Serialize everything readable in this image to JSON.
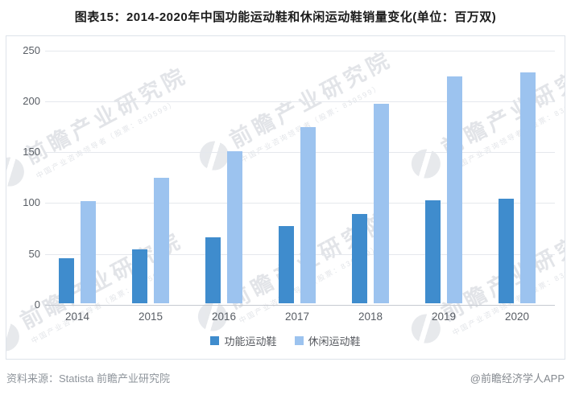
{
  "page": {
    "title": "图表15：2014-2020年中国功能运动鞋和休闲运动鞋销量变化(单位：百万双)",
    "source_left": "资料来源：Statista 前瞻产业研究院",
    "source_right": "@前瞻经济学人APP"
  },
  "watermark": {
    "brand": "前瞻产业研究院",
    "tagline": "中国产业咨询领导者（股票：839599）"
  },
  "colors": {
    "series_dark": "#3f8ccd",
    "series_light": "#9cc3ef",
    "grid": "#e5e8ed",
    "axis": "#c6cad1",
    "tick_text": "#585d64",
    "border": "#dee3ea"
  },
  "chart_data": {
    "type": "bar",
    "title": "图表15：2014-2020年中国功能运动鞋和休闲运动鞋销量变化(单位：百万双)",
    "categories": [
      "2014",
      "2015",
      "2016",
      "2017",
      "2018",
      "2019",
      "2020"
    ],
    "series": [
      {
        "name": "功能运动鞋",
        "color_key": "series_dark",
        "values": [
          44,
          53,
          65,
          76,
          88,
          101,
          103
        ]
      },
      {
        "name": "休闲运动鞋",
        "color_key": "series_light",
        "values": [
          100,
          123,
          149,
          173,
          196,
          223,
          227
        ]
      }
    ],
    "xlabel": "",
    "ylabel": "",
    "unit": "百万双",
    "ylim": [
      0,
      250
    ],
    "yticks": [
      0,
      50,
      100,
      150,
      200,
      250
    ],
    "grid": true,
    "legend_position": "bottom"
  }
}
